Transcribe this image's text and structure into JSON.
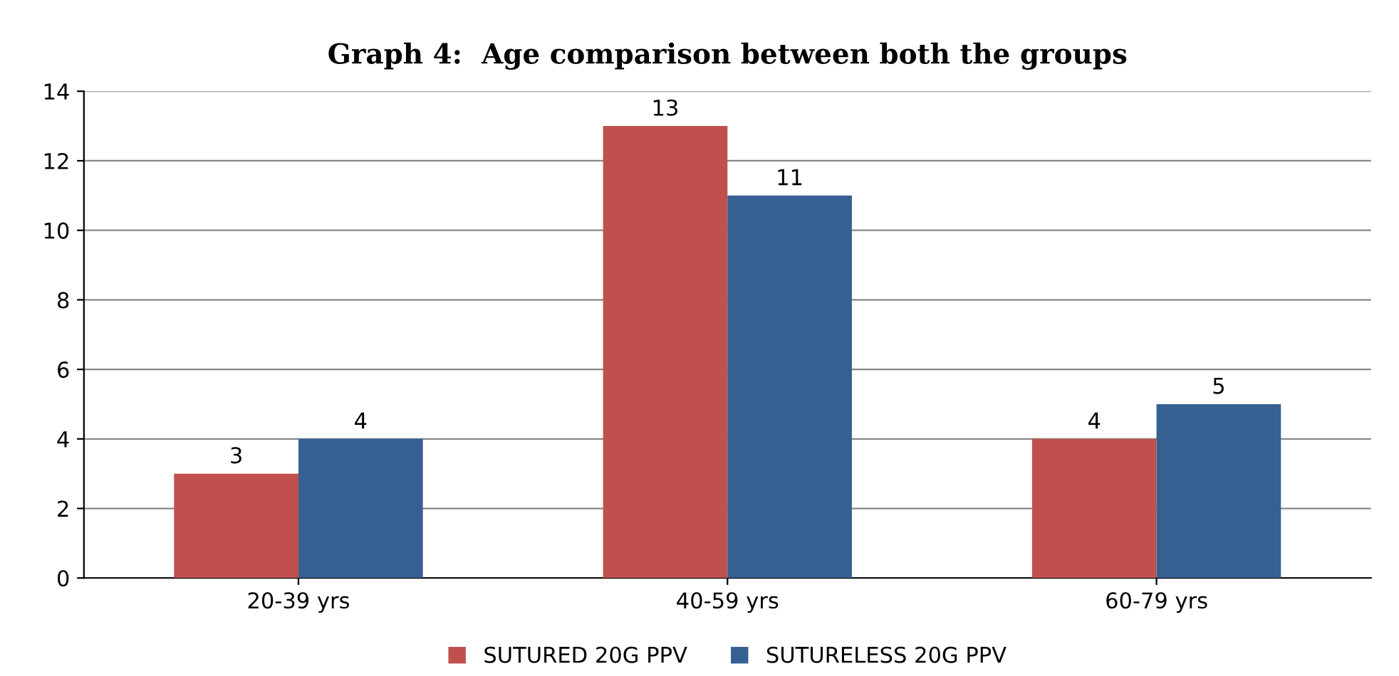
{
  "chart_data": {
    "type": "bar",
    "title": "Graph 4:  Age comparison between both the groups",
    "categories": [
      "20-39 yrs",
      "40-59 yrs",
      "60-79 yrs"
    ],
    "series": [
      {
        "name": "SUTURED 20G PPV",
        "color": "#c0504d",
        "values": [
          3,
          13,
          4
        ]
      },
      {
        "name": "SUTURELESS 20G PPV",
        "color": "#376092",
        "values": [
          4,
          11,
          5
        ]
      }
    ],
    "ylim": [
      0,
      14
    ],
    "yticks": [
      0,
      2,
      4,
      6,
      8,
      10,
      12,
      14
    ],
    "grid": "y",
    "legend": "bottom",
    "data_labels": true
  }
}
